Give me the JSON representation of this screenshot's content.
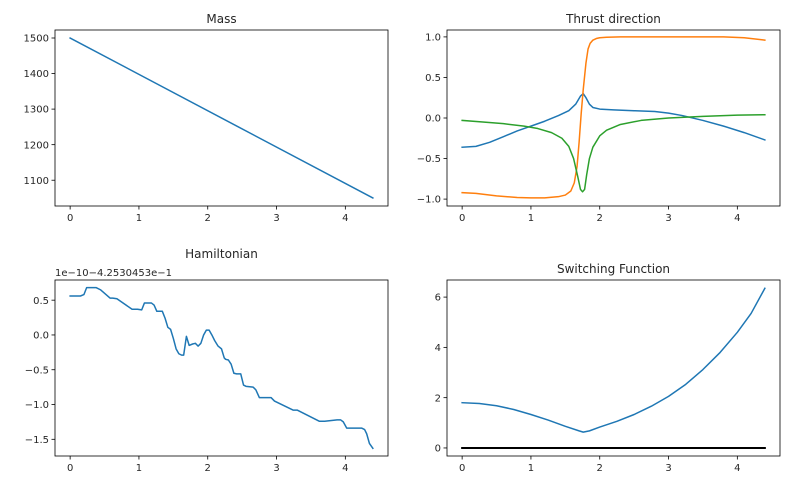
{
  "figure": {
    "background": "#ffffff"
  },
  "chart_data": [
    {
      "id": "mass",
      "type": "line",
      "title": "Mass",
      "xlabel": "",
      "ylabel": "",
      "xlim": [
        -0.22,
        4.62
      ],
      "ylim": [
        1027.5,
        1522.5
      ],
      "xticks": [
        0,
        1,
        2,
        3,
        4
      ],
      "xtick_labels": [
        "0",
        "1",
        "2",
        "3",
        "4"
      ],
      "yticks": [
        1100,
        1200,
        1300,
        1400,
        1500
      ],
      "ytick_labels": [
        "1100",
        "1200",
        "1300",
        "1400",
        "1500"
      ],
      "grid": false,
      "series": [
        {
          "name": "mass",
          "color": "#1f77b4",
          "x": [
            0,
            4.4
          ],
          "y": [
            1500,
            1050
          ]
        }
      ]
    },
    {
      "id": "thrust",
      "type": "line",
      "title": "Thrust direction",
      "xlabel": "",
      "ylabel": "",
      "xlim": [
        -0.22,
        4.62
      ],
      "ylim": [
        -1.085,
        1.085
      ],
      "xticks": [
        0,
        1,
        2,
        3,
        4
      ],
      "xtick_labels": [
        "0",
        "1",
        "2",
        "3",
        "4"
      ],
      "yticks": [
        -1.0,
        -0.5,
        0.0,
        0.5,
        1.0
      ],
      "ytick_labels": [
        "−1.0",
        "−0.5",
        "0.0",
        "0.5",
        "1.0"
      ],
      "grid": false,
      "series": [
        {
          "name": "component-1",
          "color": "#1f77b4",
          "x": [
            0,
            0.2,
            0.4,
            0.6,
            0.8,
            1.0,
            1.2,
            1.4,
            1.55,
            1.65,
            1.72,
            1.76,
            1.8,
            1.85,
            1.9,
            2.0,
            2.2,
            2.5,
            2.8,
            3.0,
            3.2,
            3.5,
            3.8,
            4.1,
            4.4
          ],
          "y": [
            -0.36,
            -0.35,
            -0.3,
            -0.23,
            -0.16,
            -0.1,
            -0.04,
            0.03,
            0.09,
            0.17,
            0.27,
            0.3,
            0.25,
            0.17,
            0.13,
            0.11,
            0.1,
            0.09,
            0.08,
            0.06,
            0.03,
            -0.03,
            -0.1,
            -0.18,
            -0.27
          ]
        },
        {
          "name": "component-2",
          "color": "#ff7f0e",
          "x": [
            0,
            0.2,
            0.5,
            0.8,
            1.0,
            1.2,
            1.4,
            1.5,
            1.58,
            1.63,
            1.67,
            1.7,
            1.73,
            1.76,
            1.8,
            1.83,
            1.86,
            1.9,
            1.95,
            2.0,
            2.1,
            2.3,
            2.7,
            3.0,
            3.5,
            3.8,
            4.1,
            4.4
          ],
          "y": [
            -0.92,
            -0.93,
            -0.96,
            -0.98,
            -0.985,
            -0.985,
            -0.97,
            -0.95,
            -0.9,
            -0.8,
            -0.6,
            -0.3,
            0.05,
            0.35,
            0.68,
            0.85,
            0.92,
            0.96,
            0.98,
            0.99,
            0.995,
            1.0,
            1.0,
            1.0,
            1.0,
            1.0,
            0.99,
            0.96
          ]
        },
        {
          "name": "component-3",
          "color": "#2ca02c",
          "x": [
            0,
            0.3,
            0.6,
            0.9,
            1.1,
            1.3,
            1.45,
            1.55,
            1.62,
            1.68,
            1.72,
            1.75,
            1.78,
            1.81,
            1.85,
            1.9,
            2.0,
            2.1,
            2.3,
            2.6,
            3.0,
            3.5,
            4.0,
            4.4
          ],
          "y": [
            -0.03,
            -0.05,
            -0.07,
            -0.1,
            -0.13,
            -0.18,
            -0.25,
            -0.35,
            -0.5,
            -0.72,
            -0.88,
            -0.91,
            -0.88,
            -0.7,
            -0.5,
            -0.36,
            -0.22,
            -0.15,
            -0.08,
            -0.03,
            0.0,
            0.02,
            0.035,
            0.04
          ]
        }
      ]
    },
    {
      "id": "hamiltonian",
      "type": "line",
      "title": "Hamiltonian",
      "offset_text": "1e−10−4.2530453e−1",
      "xlabel": "",
      "ylabel": "",
      "xlim": [
        -0.22,
        4.62
      ],
      "ylim": [
        -1.74,
        0.79
      ],
      "xticks": [
        0,
        1,
        2,
        3,
        4
      ],
      "xtick_labels": [
        "0",
        "1",
        "2",
        "3",
        "4"
      ],
      "yticks": [
        -1.5,
        -1.0,
        -0.5,
        0.0,
        0.5
      ],
      "ytick_labels": [
        "−1.5",
        "−1.0",
        "−0.5",
        "0.0",
        "0.5"
      ],
      "grid": false,
      "series": [
        {
          "name": "hamiltonian",
          "color": "#1f77b4",
          "x": [
            0,
            0.15,
            0.2,
            0.24,
            0.38,
            0.44,
            0.58,
            0.62,
            0.68,
            0.9,
            0.98,
            1.04,
            1.08,
            1.18,
            1.22,
            1.26,
            1.34,
            1.38,
            1.42,
            1.46,
            1.5,
            1.54,
            1.58,
            1.62,
            1.65,
            1.69,
            1.73,
            1.78,
            1.82,
            1.86,
            1.9,
            1.94,
            1.98,
            2.02,
            2.06,
            2.1,
            2.15,
            2.2,
            2.24,
            2.26,
            2.3,
            2.34,
            2.38,
            2.42,
            2.48,
            2.52,
            2.56,
            2.66,
            2.7,
            2.75,
            2.92,
            2.97,
            3.24,
            3.3,
            3.62,
            3.7,
            3.88,
            3.93,
            3.97,
            4.02,
            4.24,
            4.28,
            4.31,
            4.35,
            4.4
          ],
          "y": [
            0.56,
            0.56,
            0.58,
            0.68,
            0.68,
            0.65,
            0.53,
            0.53,
            0.52,
            0.37,
            0.37,
            0.36,
            0.46,
            0.46,
            0.43,
            0.34,
            0.34,
            0.24,
            0.11,
            0.08,
            -0.05,
            -0.2,
            -0.27,
            -0.29,
            -0.29,
            -0.02,
            -0.15,
            -0.13,
            -0.12,
            -0.16,
            -0.12,
            0.0,
            0.07,
            0.07,
            0.0,
            -0.08,
            -0.16,
            -0.2,
            -0.33,
            -0.35,
            -0.36,
            -0.42,
            -0.55,
            -0.56,
            -0.56,
            -0.72,
            -0.74,
            -0.75,
            -0.79,
            -0.9,
            -0.9,
            -0.95,
            -1.08,
            -1.08,
            -1.24,
            -1.24,
            -1.22,
            -1.22,
            -1.25,
            -1.34,
            -1.34,
            -1.36,
            -1.42,
            -1.56,
            -1.63
          ]
        }
      ]
    },
    {
      "id": "switching",
      "type": "line",
      "title": "Switching Function",
      "xlabel": "",
      "ylabel": "",
      "xlim": [
        -0.22,
        4.62
      ],
      "ylim": [
        -0.32,
        6.68
      ],
      "xticks": [
        0,
        1,
        2,
        3,
        4
      ],
      "xtick_labels": [
        "0",
        "1",
        "2",
        "3",
        "4"
      ],
      "yticks": [
        0,
        2,
        4,
        6
      ],
      "ytick_labels": [
        "0",
        "2",
        "4",
        "6"
      ],
      "grid": false,
      "series": [
        {
          "name": "switching-function",
          "color": "#1f77b4",
          "x": [
            0,
            0.25,
            0.5,
            0.75,
            1.0,
            1.25,
            1.5,
            1.7,
            1.76,
            1.85,
            2.0,
            2.25,
            2.5,
            2.75,
            3.0,
            3.25,
            3.5,
            3.75,
            4.0,
            4.2,
            4.4
          ],
          "y": [
            1.8,
            1.77,
            1.68,
            1.53,
            1.33,
            1.11,
            0.86,
            0.68,
            0.63,
            0.68,
            0.83,
            1.06,
            1.33,
            1.66,
            2.05,
            2.53,
            3.12,
            3.8,
            4.6,
            5.35,
            6.35
          ]
        },
        {
          "name": "zero-line",
          "color": "#000000",
          "x": [
            0,
            4.4
          ],
          "y": [
            0,
            0
          ]
        }
      ]
    }
  ]
}
